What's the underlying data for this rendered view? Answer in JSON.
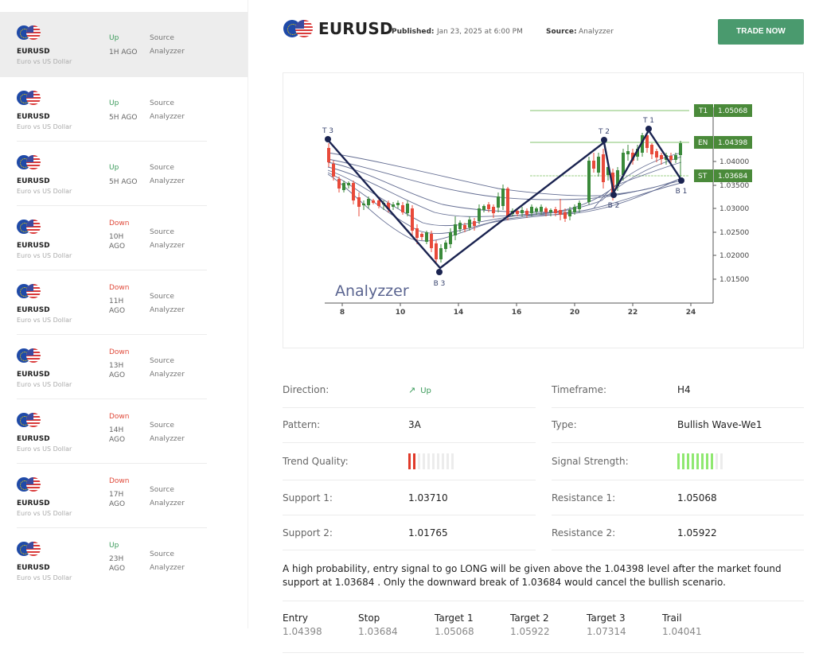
{
  "sidebar": {
    "items": [
      {
        "symbol": "EURUSD",
        "subtitle": "Euro vs US Dollar",
        "direction": "Up",
        "ago": "1H AGO",
        "source_label": "Source",
        "source": "Analyzzer",
        "active": true
      },
      {
        "symbol": "EURUSD",
        "subtitle": "Euro vs US Dollar",
        "direction": "Up",
        "ago": "5H AGO",
        "source_label": "Source",
        "source": "Analyzzer"
      },
      {
        "symbol": "EURUSD",
        "subtitle": "Euro vs US Dollar",
        "direction": "Up",
        "ago": "5H AGO",
        "source_label": "Source",
        "source": "Analyzzer"
      },
      {
        "symbol": "EURUSD",
        "subtitle": "Euro vs US Dollar",
        "direction": "Down",
        "ago_line1": "10H",
        "ago_line2": "AGO",
        "source_label": "Source",
        "source": "Analyzzer"
      },
      {
        "symbol": "EURUSD",
        "subtitle": "Euro vs US Dollar",
        "direction": "Down",
        "ago_line1": "11H",
        "ago_line2": "AGO",
        "source_label": "Source",
        "source": "Analyzzer"
      },
      {
        "symbol": "EURUSD",
        "subtitle": "Euro vs US Dollar",
        "direction": "Down",
        "ago_line1": "13H",
        "ago_line2": "AGO",
        "source_label": "Source",
        "source": "Analyzzer"
      },
      {
        "symbol": "EURUSD",
        "subtitle": "Euro vs US Dollar",
        "direction": "Down",
        "ago_line1": "14H",
        "ago_line2": "AGO",
        "source_label": "Source",
        "source": "Analyzzer"
      },
      {
        "symbol": "EURUSD",
        "subtitle": "Euro vs US Dollar",
        "direction": "Down",
        "ago_line1": "17H",
        "ago_line2": "AGO",
        "source_label": "Source",
        "source": "Analyzzer"
      },
      {
        "symbol": "EURUSD",
        "subtitle": "Euro vs US Dollar",
        "direction": "Up",
        "ago_line1": "23H",
        "ago_line2": "AGO",
        "source_label": "Source",
        "source": "Analyzzer"
      }
    ]
  },
  "header": {
    "title": "EURUSD",
    "published_label": "Published:",
    "published_value": "Jan 23, 2025 at 6:00 PM",
    "source_label": "Source:",
    "source_value": "Analyzzer",
    "trade_button": "TRADE NOW"
  },
  "chart": {
    "watermark": "Analyzzer",
    "x_ticks": [
      "8",
      "10",
      "14",
      "16",
      "20",
      "22",
      "24"
    ],
    "y_ticks": [
      "1.04000",
      "1.03500",
      "1.03000",
      "1.02500",
      "1.02000",
      "1.01500"
    ],
    "levels": [
      {
        "tag": "T1",
        "value": "1.05068"
      },
      {
        "tag": "EN",
        "value": "1.04398"
      },
      {
        "tag": "ST",
        "value": "1.03684"
      }
    ],
    "points": [
      "T 3",
      "B 3",
      "T 2",
      "B 2",
      "T 1",
      "B 1"
    ],
    "colors": {
      "bull": "#3a8a3a",
      "bear": "#e84a3a",
      "level": "#4a8a3a",
      "zigzag": "#1a2350"
    }
  },
  "details": {
    "left": [
      {
        "label": "Direction:",
        "value": "Up"
      },
      {
        "label": "Pattern:",
        "value": "3A"
      },
      {
        "label": "Trend Quality:",
        "value": "2/10"
      },
      {
        "label": "Support 1:",
        "value": "1.03710"
      },
      {
        "label": "Support 2:",
        "value": "1.01765"
      }
    ],
    "right": [
      {
        "label": "Timeframe:",
        "value": "H4"
      },
      {
        "label": "Type:",
        "value": "Bullish Wave-We1"
      },
      {
        "label": "Signal Strength:",
        "value": "8/10"
      },
      {
        "label": "Resistance 1:",
        "value": "1.05068"
      },
      {
        "label": "Resistance 2:",
        "value": "1.05922"
      }
    ],
    "trend_quality_bars": 2,
    "signal_strength_bars": 8,
    "total_bars": 10,
    "trend_color": "#e03a2a",
    "signal_color": "#8fe870"
  },
  "description": "A high probability, entry signal to go LONG will be given above the 1.04398 level after the market found support at 1.03684 . Only the downward break of 1.03684 would cancel the bullish scenario.",
  "levels": [
    {
      "label": "Entry",
      "value": "1.04398"
    },
    {
      "label": "Stop",
      "value": "1.03684"
    },
    {
      "label": "Target 1",
      "value": "1.05068"
    },
    {
      "label": "Target 2",
      "value": "1.05922"
    },
    {
      "label": "Target 3",
      "value": "1.07314"
    },
    {
      "label": "Trail",
      "value": "1.04041"
    }
  ]
}
